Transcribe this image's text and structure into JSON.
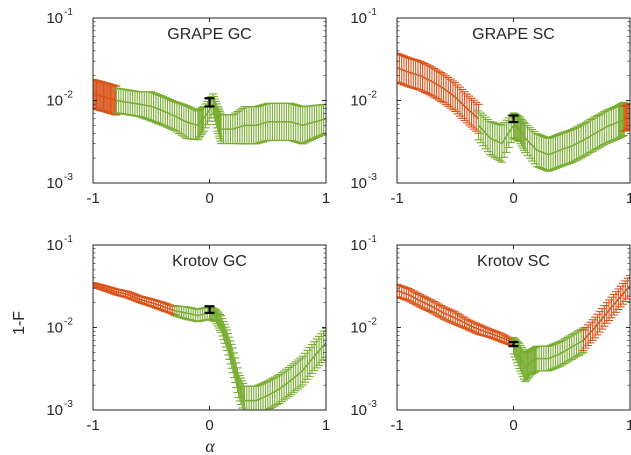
{
  "figure": {
    "ylabel": "1-F",
    "xlabel": "α"
  },
  "colors": {
    "red_series": "#d95319",
    "green_series": "#77ac30",
    "black_series": "#000000",
    "axis": "#262626"
  },
  "chart_data": [
    {
      "type": "scatter",
      "title": "GRAPE GC",
      "xlim": [
        -1,
        1
      ],
      "ylim": [
        0.001,
        0.1
      ],
      "yscale": "log",
      "xticks": [
        -1,
        0,
        1
      ],
      "yticks": [
        {
          "base": "10",
          "exp": "-3"
        },
        {
          "base": "10",
          "exp": "-2"
        },
        {
          "base": "10",
          "exp": "-1"
        }
      ],
      "grid": false,
      "series": [
        {
          "color": "red",
          "x": [
            -1.0,
            -0.95,
            -0.9,
            -0.85,
            -0.8
          ],
          "y": [
            0.012,
            0.0115,
            0.011,
            0.0105,
            0.01
          ],
          "err": [
            0.35,
            0.35,
            0.35,
            0.35,
            0.35
          ]
        },
        {
          "color": "green",
          "x": [
            -0.8,
            -0.7,
            -0.6,
            -0.5,
            -0.4,
            -0.3,
            -0.2,
            -0.1,
            -0.05,
            0.03,
            0.07,
            0.1,
            0.2,
            0.3,
            0.4,
            0.5,
            0.6,
            0.7,
            0.8,
            0.9,
            1.0
          ],
          "y": [
            0.01,
            0.0095,
            0.009,
            0.0085,
            0.0075,
            0.0065,
            0.0055,
            0.005,
            0.006,
            0.009,
            0.006,
            0.0045,
            0.0045,
            0.005,
            0.005,
            0.0055,
            0.0055,
            0.0055,
            0.005,
            0.0055,
            0.006
          ],
          "err": [
            0.3,
            0.3,
            0.3,
            0.35,
            0.35,
            0.35,
            0.4,
            0.35,
            0.3,
            0.25,
            0.3,
            0.35,
            0.35,
            0.45,
            0.45,
            0.45,
            0.45,
            0.45,
            0.45,
            0.4,
            0.35
          ]
        },
        {
          "color": "black",
          "x": [
            0.0
          ],
          "y": [
            0.0095
          ],
          "err": [
            0.1
          ]
        }
      ]
    },
    {
      "type": "scatter",
      "title": "GRAPE SC",
      "xlim": [
        -1,
        1
      ],
      "ylim": [
        0.001,
        0.1
      ],
      "yscale": "log",
      "xticks": [
        -1,
        0,
        1
      ],
      "yticks": [
        {
          "base": "10",
          "exp": "-3"
        },
        {
          "base": "10",
          "exp": "-2"
        },
        {
          "base": "10",
          "exp": "-1"
        }
      ],
      "grid": false,
      "series": [
        {
          "color": "red",
          "x": [
            -1.0,
            -0.9,
            -0.8,
            -0.7,
            -0.6,
            -0.5,
            -0.4,
            -0.3
          ],
          "y": [
            0.025,
            0.022,
            0.02,
            0.017,
            0.014,
            0.011,
            0.008,
            0.006
          ],
          "err": [
            0.35,
            0.35,
            0.35,
            0.35,
            0.35,
            0.35,
            0.35,
            0.35
          ]
        },
        {
          "color": "green",
          "x": [
            -0.3,
            -0.2,
            -0.1,
            0.0,
            0.05,
            0.1,
            0.2,
            0.3,
            0.4,
            0.5,
            0.6,
            0.7,
            0.8,
            0.9,
            0.95
          ],
          "y": [
            0.005,
            0.0035,
            0.003,
            0.005,
            0.0045,
            0.0035,
            0.0025,
            0.0022,
            0.0025,
            0.0028,
            0.0033,
            0.004,
            0.0048,
            0.0055,
            0.006
          ],
          "err": [
            0.35,
            0.4,
            0.45,
            0.3,
            0.3,
            0.35,
            0.4,
            0.4,
            0.4,
            0.4,
            0.4,
            0.4,
            0.4,
            0.4,
            0.4
          ]
        },
        {
          "color": "red",
          "x": [
            0.95,
            1.0
          ],
          "y": [
            0.006,
            0.0065
          ],
          "err": [
            0.3,
            0.3
          ]
        },
        {
          "color": "black",
          "x": [
            0.0
          ],
          "y": [
            0.006
          ],
          "err": [
            0.08
          ]
        }
      ]
    },
    {
      "type": "scatter",
      "title": "Krotov GC",
      "xlim": [
        -1,
        1
      ],
      "ylim": [
        0.001,
        0.1
      ],
      "yscale": "log",
      "xticks": [
        -1,
        0,
        1
      ],
      "yticks": [
        {
          "base": "10",
          "exp": "-3"
        },
        {
          "base": "10",
          "exp": "-2"
        },
        {
          "base": "10",
          "exp": "-1"
        }
      ],
      "grid": false,
      "series": [
        {
          "color": "red",
          "x": [
            -1.0,
            -0.9,
            -0.8,
            -0.7,
            -0.6,
            -0.5,
            -0.4,
            -0.3
          ],
          "y": [
            0.033,
            0.03,
            0.027,
            0.025,
            0.022,
            0.02,
            0.018,
            0.016
          ],
          "err": [
            0.05,
            0.06,
            0.07,
            0.08,
            0.08,
            0.09,
            0.1,
            0.1
          ]
        },
        {
          "color": "green",
          "x": [
            -0.3,
            -0.2,
            -0.1,
            0.0,
            0.05,
            0.1,
            0.15,
            0.2,
            0.25,
            0.3,
            0.4,
            0.5,
            0.6,
            0.7,
            0.8,
            0.9,
            1.0
          ],
          "y": [
            0.016,
            0.015,
            0.014,
            0.015,
            0.014,
            0.011,
            0.007,
            0.004,
            0.002,
            0.0013,
            0.0013,
            0.0015,
            0.0018,
            0.0023,
            0.003,
            0.0045,
            0.0065
          ],
          "err": [
            0.12,
            0.15,
            0.15,
            0.15,
            0.15,
            0.2,
            0.25,
            0.3,
            0.3,
            0.35,
            0.35,
            0.35,
            0.35,
            0.35,
            0.35,
            0.35,
            0.35
          ]
        },
        {
          "color": "black",
          "x": [
            0.0
          ],
          "y": [
            0.0165
          ],
          "err": [
            0.08
          ]
        }
      ]
    },
    {
      "type": "scatter",
      "title": "Krotov SC",
      "xlim": [
        -1,
        1
      ],
      "ylim": [
        0.001,
        0.1
      ],
      "yscale": "log",
      "xticks": [
        -1,
        0,
        1
      ],
      "yticks": [
        {
          "base": "10",
          "exp": "-3"
        },
        {
          "base": "10",
          "exp": "-2"
        },
        {
          "base": "10",
          "exp": "-1"
        }
      ],
      "grid": false,
      "series": [
        {
          "color": "red",
          "x": [
            -1.0,
            -0.9,
            -0.8,
            -0.7,
            -0.6,
            -0.5,
            -0.4,
            -0.3,
            -0.2,
            -0.1,
            0.0
          ],
          "y": [
            0.028,
            0.025,
            0.021,
            0.018,
            0.015,
            0.013,
            0.011,
            0.0095,
            0.0085,
            0.0075,
            0.0065
          ],
          "err": [
            0.15,
            0.15,
            0.15,
            0.15,
            0.15,
            0.15,
            0.12,
            0.12,
            0.1,
            0.1,
            0.08
          ]
        },
        {
          "color": "green",
          "x": [
            0.0,
            0.05,
            0.1,
            0.15,
            0.2,
            0.3,
            0.4,
            0.5,
            0.6
          ],
          "y": [
            0.006,
            0.0045,
            0.0033,
            0.0038,
            0.0042,
            0.0042,
            0.0048,
            0.0058,
            0.007
          ],
          "err": [
            0.2,
            0.3,
            0.35,
            0.3,
            0.3,
            0.3,
            0.3,
            0.3,
            0.3
          ]
        },
        {
          "color": "red",
          "x": [
            0.6,
            0.7,
            0.8,
            0.9,
            1.0
          ],
          "y": [
            0.007,
            0.01,
            0.015,
            0.022,
            0.032
          ],
          "err": [
            0.25,
            0.25,
            0.25,
            0.25,
            0.25
          ]
        },
        {
          "color": "black",
          "x": [
            0.0
          ],
          "y": [
            0.0063
          ],
          "err": [
            0.05
          ]
        }
      ]
    }
  ]
}
